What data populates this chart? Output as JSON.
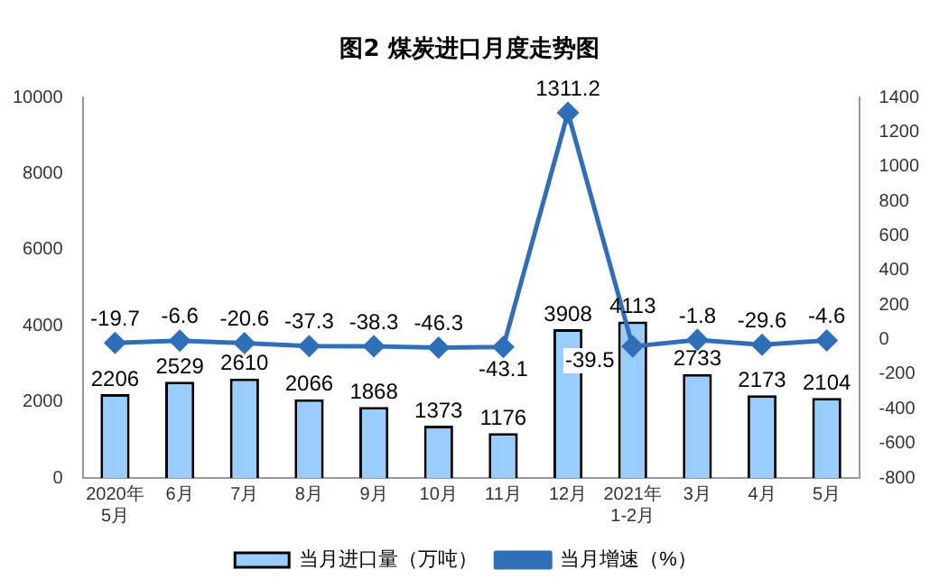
{
  "chart_data": {
    "type": "bar",
    "title": "图2  煤炭进口月度走势图",
    "categories": [
      "2020年\n5月",
      "6月",
      "7月",
      "8月",
      "9月",
      "10月",
      "11月",
      "12月",
      "2021年\n1-2月",
      "3月",
      "4月",
      "5月"
    ],
    "series": [
      {
        "name": "当月进口量（万吨）",
        "type": "bar",
        "color": "#99ccff",
        "values": [
          2206,
          2529,
          2610,
          2066,
          1868,
          1373,
          1176,
          3908,
          4113,
          2733,
          2173,
          2104
        ]
      },
      {
        "name": "当月增速（%）",
        "type": "line",
        "axis": "y2",
        "color": "#2e6fb8",
        "values": [
          -19.7,
          -6.6,
          -20.6,
          -37.3,
          -38.3,
          -46.3,
          -43.1,
          1311.2,
          -39.5,
          -1.8,
          -29.6,
          -4.6
        ]
      }
    ],
    "ylim": [
      0,
      10000
    ],
    "yticks": [
      0,
      2000,
      4000,
      6000,
      8000,
      10000
    ],
    "y2lim": [
      -800,
      1400
    ],
    "y2ticks": [
      -800,
      -600,
      -400,
      -200,
      0,
      200,
      400,
      600,
      800,
      1000,
      1200,
      1400
    ],
    "data_labels": true,
    "legend": "bottom",
    "marker": "diamond",
    "line_style": "solid",
    "grid": false
  }
}
